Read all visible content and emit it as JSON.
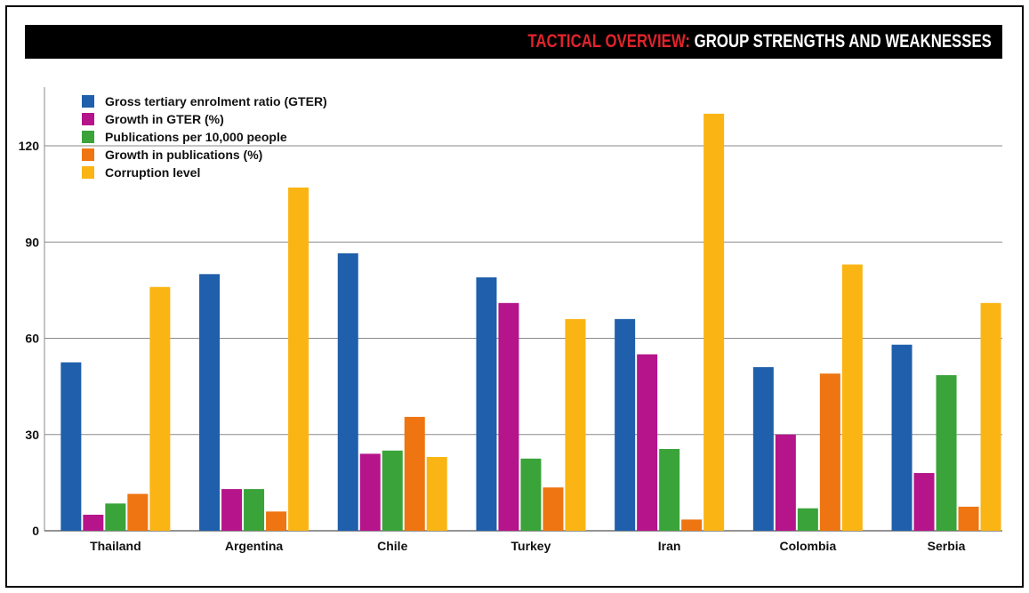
{
  "header": {
    "title_accent": "TACTICAL OVERVIEW:",
    "title_main": "GROUP STRENGTHS AND WEAKNESSES"
  },
  "chart_data": {
    "type": "bar",
    "title": "TACTICAL OVERVIEW: GROUP STRENGTHS AND WEAKNESSES",
    "xlabel": "",
    "ylabel": "",
    "ylim": [
      0,
      135
    ],
    "yticks": [
      0,
      30,
      60,
      90,
      120
    ],
    "grid": true,
    "legend_position": "top-left",
    "categories": [
      "Thailand",
      "Argentina",
      "Chile",
      "Turkey",
      "Iran",
      "Colombia",
      "Serbia"
    ],
    "series": [
      {
        "name": "Gross tertiary enrolment ratio (GTER)",
        "color": "#1f5fab",
        "values": [
          52.5,
          80,
          86.5,
          79,
          66,
          51,
          58
        ]
      },
      {
        "name": "Growth in GTER (%)",
        "color": "#b5148a",
        "values": [
          5,
          13,
          24,
          71,
          55,
          30,
          18
        ]
      },
      {
        "name": "Publications per 10,000 people",
        "color": "#3aa33a",
        "values": [
          8.5,
          13,
          25,
          22.5,
          25.5,
          7,
          48.5
        ]
      },
      {
        "name": "Growth in publications (%)",
        "color": "#ee7511",
        "values": [
          11.5,
          6,
          35.5,
          13.5,
          3.5,
          49,
          7.5
        ]
      },
      {
        "name": "Corruption level",
        "color": "#fab514",
        "values": [
          76,
          107,
          23,
          66,
          130,
          83,
          71
        ]
      }
    ]
  }
}
